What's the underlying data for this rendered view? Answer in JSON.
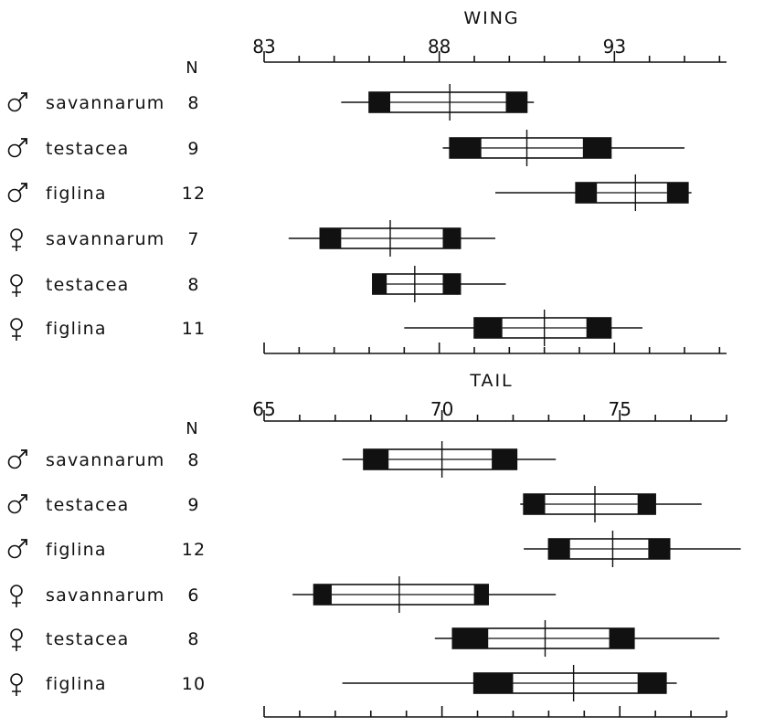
{
  "chart_data": [
    {
      "type": "box",
      "title": "WING",
      "n_header": "N",
      "xlim": [
        83,
        96.2
      ],
      "top_tick_labels": [
        "83",
        "88",
        "93"
      ],
      "top_tick_values": [
        83,
        88,
        93
      ],
      "rows": [
        {
          "sex": "male",
          "name": "savannarum",
          "n": "8",
          "min": 85.2,
          "max": 90.7,
          "lo_outer": 86.0,
          "lo_inner": 86.6,
          "hi_inner": 89.9,
          "hi_outer": 90.5,
          "mean": 88.3
        },
        {
          "sex": "male",
          "name": "testacea",
          "n": "9",
          "min": 88.1,
          "max": 95.0,
          "lo_outer": 88.3,
          "lo_inner": 89.2,
          "hi_inner": 92.1,
          "hi_outer": 92.9,
          "mean": 90.5
        },
        {
          "sex": "male",
          "name": "figlina",
          "n": "12",
          "min": 89.6,
          "max": 95.2,
          "lo_outer": 91.9,
          "lo_inner": 92.5,
          "hi_inner": 94.5,
          "hi_outer": 95.1,
          "mean": 93.6
        },
        {
          "sex": "female",
          "name": "savannarum",
          "n": "7",
          "min": 83.7,
          "max": 89.6,
          "lo_outer": 84.6,
          "lo_inner": 85.2,
          "hi_inner": 88.1,
          "hi_outer": 88.6,
          "mean": 86.6
        },
        {
          "sex": "female",
          "name": "testacea",
          "n": "8",
          "min": 86.1,
          "max": 89.9,
          "lo_outer": 86.1,
          "lo_inner": 86.5,
          "hi_inner": 88.1,
          "hi_outer": 88.6,
          "mean": 87.3
        },
        {
          "sex": "female",
          "name": "figlina",
          "n": "11",
          "min": 87.0,
          "max": 93.8,
          "lo_outer": 89.0,
          "lo_inner": 89.8,
          "hi_inner": 92.2,
          "hi_outer": 92.9,
          "mean": 91.0
        }
      ]
    },
    {
      "type": "box",
      "title": "TAIL",
      "n_header": "N",
      "xlim": [
        65,
        78
      ],
      "top_tick_labels": [
        "65",
        "70",
        "75"
      ],
      "top_tick_values": [
        65,
        70,
        75
      ],
      "rows": [
        {
          "sex": "male",
          "name": "savannarum",
          "n": "8",
          "min": 67.2,
          "max": 73.2,
          "lo_outer": 67.8,
          "lo_inner": 68.5,
          "hi_inner": 71.4,
          "hi_outer": 72.1,
          "mean": 70.0
        },
        {
          "sex": "male",
          "name": "testacea",
          "n": "9",
          "min": 72.2,
          "max": 77.3,
          "lo_outer": 72.3,
          "lo_inner": 72.9,
          "hi_inner": 75.5,
          "hi_outer": 76.0,
          "mean": 74.3
        },
        {
          "sex": "male",
          "name": "figlina",
          "n": "12",
          "min": 72.3,
          "max": 78.4,
          "lo_outer": 73.0,
          "lo_inner": 73.6,
          "hi_inner": 75.8,
          "hi_outer": 76.4,
          "mean": 74.8
        },
        {
          "sex": "female",
          "name": "savannarum",
          "n": "6",
          "min": 65.8,
          "max": 73.2,
          "lo_outer": 66.4,
          "lo_inner": 66.9,
          "hi_inner": 70.9,
          "hi_outer": 71.3,
          "mean": 68.8
        },
        {
          "sex": "female",
          "name": "testacea",
          "n": "8",
          "min": 69.8,
          "max": 77.8,
          "lo_outer": 70.3,
          "lo_inner": 71.3,
          "hi_inner": 74.7,
          "hi_outer": 75.4,
          "mean": 72.9
        },
        {
          "sex": "female",
          "name": "figlina",
          "n": "10",
          "min": 67.2,
          "max": 76.6,
          "lo_outer": 70.9,
          "lo_inner": 72.0,
          "hi_inner": 75.5,
          "hi_outer": 76.3,
          "mean": 73.7
        }
      ]
    }
  ]
}
